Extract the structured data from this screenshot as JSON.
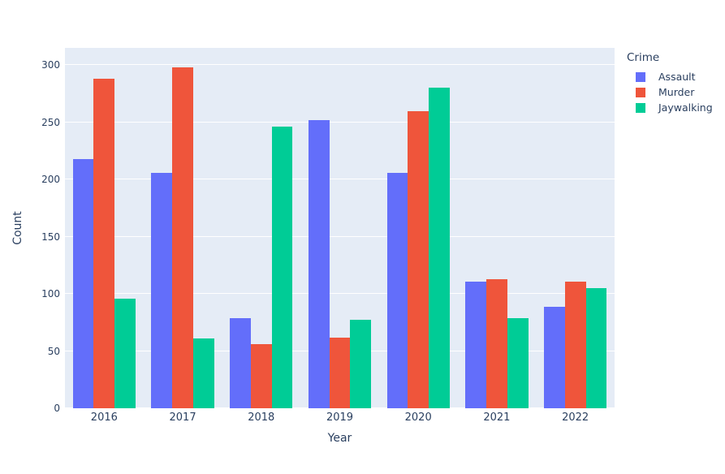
{
  "figure": {
    "background": "#ffffff",
    "plot_background": "#E5ECF6",
    "grid_color": "#ffffff",
    "text_color": "#2a3f5f"
  },
  "chart_data": {
    "type": "bar",
    "barmode": "group",
    "title": "",
    "xlabel": "Year",
    "ylabel": "Count",
    "categories": [
      "2016",
      "2017",
      "2018",
      "2019",
      "2020",
      "2021",
      "2022"
    ],
    "series": [
      {
        "name": "Assault",
        "color": "#636EFA",
        "values": [
          218,
          206,
          79,
          252,
          206,
          111,
          89
        ]
      },
      {
        "name": "Murder",
        "color": "#EF553B",
        "values": [
          288,
          298,
          56,
          62,
          260,
          113,
          111
        ]
      },
      {
        "name": "Jaywalking",
        "color": "#00CC96",
        "values": [
          96,
          61,
          246,
          77,
          280,
          79,
          105
        ]
      }
    ],
    "ylim": [
      0,
      315
    ],
    "yticks": [
      0,
      50,
      100,
      150,
      200,
      250,
      300
    ],
    "grid": true,
    "legend": {
      "title": "Crime",
      "position": "right"
    }
  }
}
